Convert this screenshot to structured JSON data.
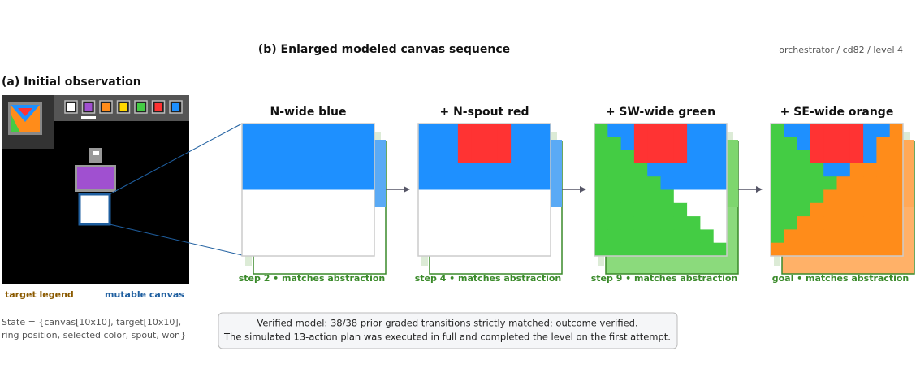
{
  "header": {
    "title": "(b) Enlarged modeled canvas sequence",
    "meta": "orchestrator / cd82 / level 4"
  },
  "panel_a": {
    "title": "(a) Initial observation",
    "legend_target": "target legend",
    "legend_canvas": "mutable canvas",
    "state_lines": [
      "State = {canvas[10x10], target[10x10],",
      "ring position, selected color, spout, won}"
    ]
  },
  "summary": {
    "lines": [
      "Verified model: 38/38 prior graded transitions strictly matched; outcome verified.",
      "The simulated 13-action plan was executed in full and completed the level on the first attempt."
    ]
  },
  "panels": [
    {
      "title": "N-wide blue",
      "caption": "step 2 • matches abstraction"
    },
    {
      "title": "+ N-spout red",
      "caption": "step 4 • matches abstraction"
    },
    {
      "title": "+ SW-wide green",
      "caption": "step 9 • matches abstraction"
    },
    {
      "title": "+ SE-wide orange",
      "caption": "goal • matches abstraction"
    }
  ]
}
